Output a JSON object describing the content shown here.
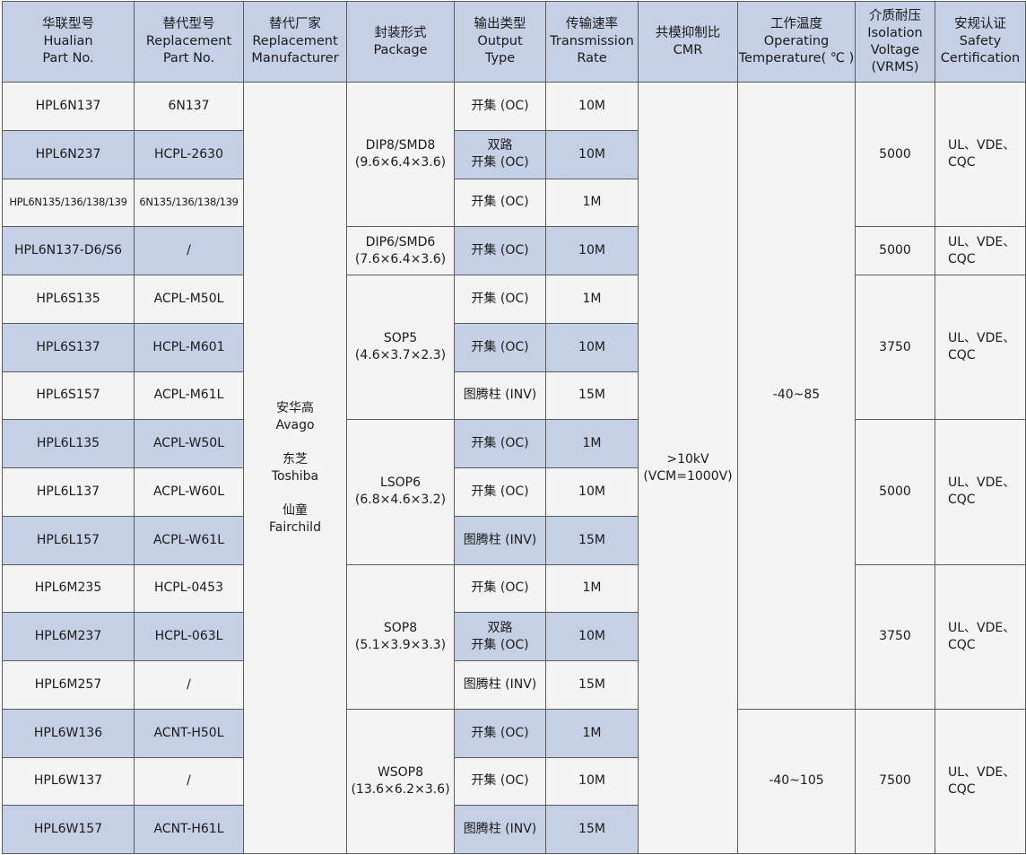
{
  "headers": [
    [
      "华联型号",
      "Hualian",
      "Part No."
    ],
    [
      "替代型号",
      "Replacement",
      "Part No."
    ],
    [
      "替代厂家",
      "Replacement",
      "Manufacturer"
    ],
    [
      "封装形式",
      "Package"
    ],
    [
      "输出类型",
      "Output",
      "Type"
    ],
    [
      "传输速率",
      "Transmission",
      "Rate"
    ],
    [
      "共模抑制比",
      "CMR"
    ],
    [
      "工作温度",
      "Operating",
      "Temperature( ℃ )"
    ],
    [
      "介质耐压",
      "Isolation",
      "Voltage",
      "(VRMS)"
    ],
    [
      "安规认证",
      "Safety",
      "Certification"
    ]
  ],
  "rows": [
    {
      "part": "HPL6N137",
      "replacement": "6N137",
      "output": "开集 (OC)",
      "rate": "10M"
    },
    {
      "part": "HPL6N237",
      "replacement": "HCPL-2630",
      "output": "双路\n开集 (OC)",
      "rate": "10M"
    },
    {
      "part": "HPL6N135/136/138/139",
      "replacement": "6N135/136/138/139",
      "output": "开集 (OC)",
      "rate": "1M"
    },
    {
      "part": "HPL6N137-D6/S6",
      "replacement": "/",
      "output": "开集 (OC)",
      "rate": "10M"
    },
    {
      "part": "HPL6S135",
      "replacement": "ACPL-M50L",
      "output": "开集 (OC)",
      "rate": "1M"
    },
    {
      "part": "HPL6S137",
      "replacement": "HCPL-M601",
      "output": "开集 (OC)",
      "rate": "10M"
    },
    {
      "part": "HPL6S157",
      "replacement": "ACPL-M61L",
      "output": "图腾柱 (INV)",
      "rate": "15M"
    },
    {
      "part": "HPL6L135",
      "replacement": "ACPL-W50L",
      "output": "开集 (OC)",
      "rate": "1M"
    },
    {
      "part": "HPL6L137",
      "replacement": "ACPL-W60L",
      "output": "开集 (OC)",
      "rate": "10M"
    },
    {
      "part": "HPL6L157",
      "replacement": "ACPL-W61L",
      "output": "图腾柱 (INV)",
      "rate": "15M"
    },
    {
      "part": "HPL6M235",
      "replacement": "HCPL-0453",
      "output": "开集 (OC)",
      "rate": "1M"
    },
    {
      "part": "HPL6M237",
      "replacement": "HCPL-063L",
      "output": "双路\n开集 (OC)",
      "rate": "10M"
    },
    {
      "part": "HPL6M257",
      "replacement": "/",
      "output": "图腾柱 (INV)",
      "rate": "15M"
    },
    {
      "part": "HPL6W136",
      "replacement": "ACNT-H50L",
      "output": "开集 (OC)",
      "rate": "1M"
    },
    {
      "part": "HPL6W137",
      "replacement": "/",
      "output": "开集 (OC)",
      "rate": "10M"
    },
    {
      "part": "HPL6W157",
      "replacement": "ACNT-H61L",
      "output": "图腾柱 (INV)",
      "rate": "15M"
    }
  ],
  "manufacturer": {
    "span": 16,
    "text": "安华高\nAvago\n\n东芝\nToshiba\n\n仙童\nFairchild"
  },
  "packages": [
    {
      "span": 3,
      "text": "DIP8/SMD8\n(9.6×6.4×3.6)"
    },
    {
      "span": 1,
      "text": "DIP6/SMD6\n(7.6×6.4×3.6)"
    },
    {
      "span": 3,
      "text": "SOP5\n(4.6×3.7×2.3)"
    },
    {
      "span": 3,
      "text": "LSOP6\n(6.8×4.6×3.2)"
    },
    {
      "span": 3,
      "text": "SOP8\n(5.1×3.9×3.3)"
    },
    {
      "span": 3,
      "text": "WSOP8\n(13.6×6.2×3.6)"
    }
  ],
  "cmr": {
    "span": 16,
    "text": ">10kV\n(VCM=1000V)"
  },
  "temperature": [
    {
      "span": 13,
      "text": "-40~85"
    },
    {
      "span": 3,
      "text": "-40~105"
    }
  ],
  "isolation": [
    {
      "span": 3,
      "text": "5000"
    },
    {
      "span": 1,
      "text": "5000"
    },
    {
      "span": 3,
      "text": "3750"
    },
    {
      "span": 3,
      "text": "5000"
    },
    {
      "span": 3,
      "text": "3750"
    },
    {
      "span": 3,
      "text": "7500"
    }
  ],
  "safety": [
    {
      "span": 3,
      "text": "UL、VDE、\nCQC"
    },
    {
      "span": 1,
      "text": "UL、VDE、\nCQC"
    },
    {
      "span": 3,
      "text": "UL、VDE、\nCQC"
    },
    {
      "span": 3,
      "text": "UL、VDE、\nCQC"
    },
    {
      "span": 3,
      "text": "UL、VDE、\nCQC"
    },
    {
      "span": 3,
      "text": "UL、VDE、\nCQC"
    }
  ],
  "colors": {
    "header": "#c5d0e6",
    "alt_row": "#c5d0e6",
    "row": "#f4f4f4",
    "border": "#5a5a5a"
  }
}
